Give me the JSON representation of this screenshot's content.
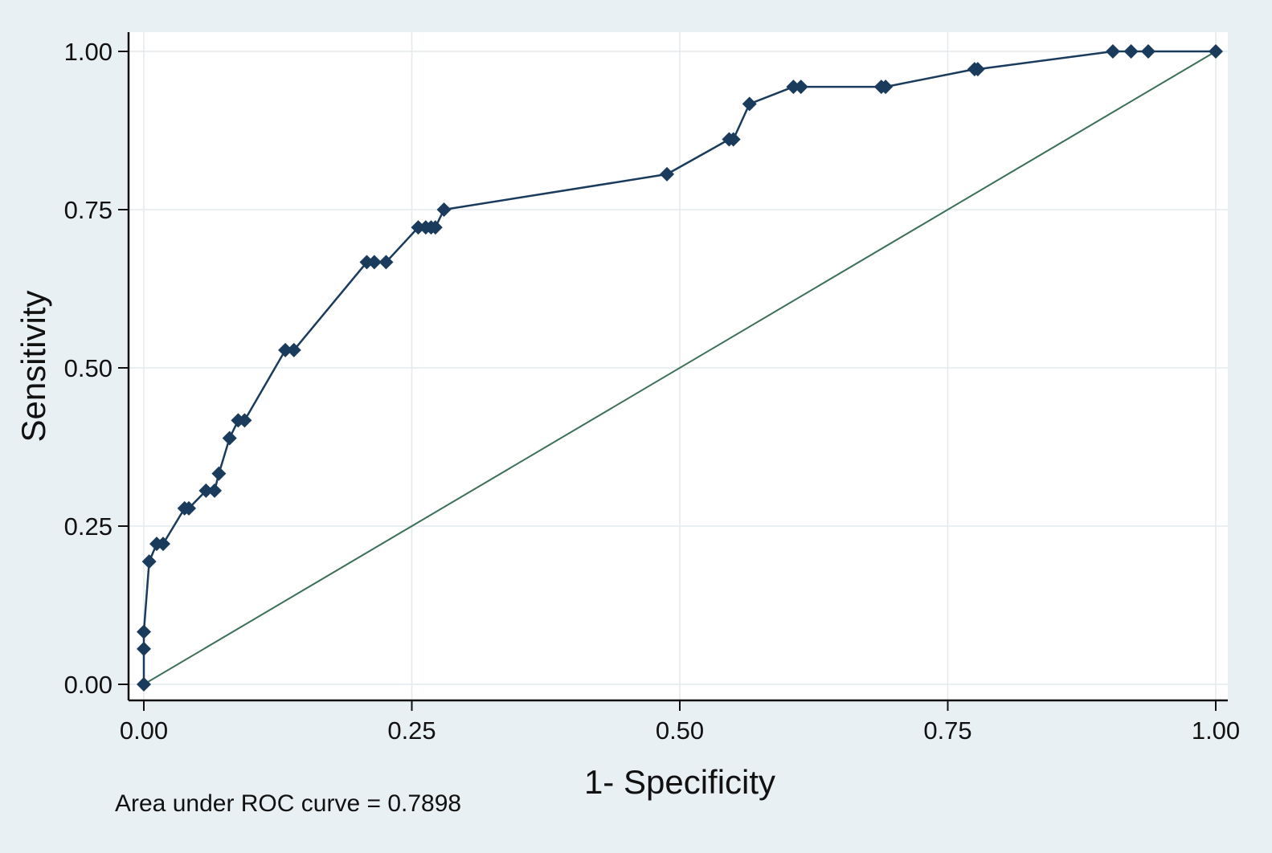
{
  "chart_data": {
    "type": "line",
    "xlabel": "1- Specificity",
    "ylabel": "Sensitivity",
    "xlim": [
      0,
      1
    ],
    "ylim": [
      0,
      1
    ],
    "x_ticks": [
      "0.00",
      "0.25",
      "0.50",
      "0.75",
      "1.00"
    ],
    "y_ticks": [
      "0.00",
      "0.25",
      "0.50",
      "0.75",
      "1.00"
    ],
    "grid": true,
    "note": "Area under ROC curve = 0.7898",
    "colors": {
      "background": "#e9f0f4",
      "plot_area": "#ffffff",
      "gridline": "#e3eaee",
      "roc_curve": "#1a3b5c",
      "reference_line": "#3d7058"
    },
    "series": [
      {
        "type": "line-marker",
        "marker": "diamond",
        "x": [
          0.0,
          0.0,
          0.0,
          0.005,
          0.012,
          0.018,
          0.038,
          0.042,
          0.058,
          0.066,
          0.07,
          0.08,
          0.088,
          0.094,
          0.132,
          0.14,
          0.208,
          0.215,
          0.226,
          0.256,
          0.263,
          0.268,
          0.272,
          0.28,
          0.488,
          0.546,
          0.55,
          0.565,
          0.606,
          0.613,
          0.688,
          0.692,
          0.775,
          0.778,
          0.904,
          0.921,
          0.937,
          1.0
        ],
        "y": [
          0.0,
          0.056,
          0.083,
          0.194,
          0.222,
          0.222,
          0.278,
          0.278,
          0.306,
          0.306,
          0.333,
          0.389,
          0.417,
          0.417,
          0.528,
          0.528,
          0.667,
          0.667,
          0.667,
          0.722,
          0.722,
          0.722,
          0.722,
          0.75,
          0.806,
          0.861,
          0.861,
          0.917,
          0.944,
          0.944,
          0.944,
          0.944,
          0.972,
          0.972,
          1.0,
          1.0,
          1.0,
          1.0
        ]
      },
      {
        "type": "reference-line",
        "x": [
          0,
          1
        ],
        "y": [
          0,
          1
        ]
      }
    ]
  }
}
